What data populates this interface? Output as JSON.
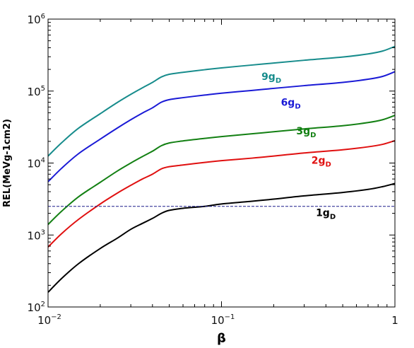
{
  "chart_data": {
    "type": "line",
    "title": "",
    "xlabel": "β",
    "ylabel": "REL(MeVg-1cm2)",
    "xscale": "log",
    "yscale": "log",
    "xlim": [
      0.01,
      1
    ],
    "ylim": [
      100,
      1000000
    ],
    "grid": false,
    "x_ticks": [
      {
        "base": "10",
        "exp": "−2",
        "value": 0.01
      },
      {
        "base": "10",
        "exp": "−1",
        "value": 0.1
      },
      {
        "base": "1",
        "exp": "",
        "value": 1
      }
    ],
    "y_ticks": [
      {
        "base": "10",
        "exp": "2",
        "value": 100
      },
      {
        "base": "10",
        "exp": "3",
        "value": 1000
      },
      {
        "base": "10",
        "exp": "4",
        "value": 10000
      },
      {
        "base": "10",
        "exp": "5",
        "value": 100000
      },
      {
        "base": "10",
        "exp": "6",
        "value": 1000000
      }
    ],
    "threshold": {
      "y": 2500,
      "color": "#1c1c8c",
      "style": "dashed"
    },
    "series": [
      {
        "name": "1gD",
        "label_main": "1g",
        "label_sub": "D",
        "color": "#000000",
        "label_pos": [
          0.35,
          2050
        ],
        "x": [
          0.01,
          0.012,
          0.015,
          0.02,
          0.025,
          0.03,
          0.035,
          0.04,
          0.045,
          0.05,
          0.06,
          0.08,
          0.1,
          0.15,
          0.2,
          0.3,
          0.5,
          0.7,
          0.85,
          1.0
        ],
        "y": [
          160,
          250,
          400,
          650,
          900,
          1200,
          1450,
          1700,
          2000,
          2200,
          2350,
          2500,
          2700,
          2950,
          3150,
          3500,
          3900,
          4300,
          4700,
          5200
        ]
      },
      {
        "name": "2gD",
        "label_main": "2g",
        "label_sub": "D",
        "color": "#e01010",
        "label_pos": [
          0.33,
          11000
        ],
        "x": [
          0.01,
          0.012,
          0.015,
          0.02,
          0.025,
          0.03,
          0.035,
          0.04,
          0.045,
          0.05,
          0.06,
          0.08,
          0.1,
          0.15,
          0.2,
          0.3,
          0.5,
          0.7,
          0.85,
          1.0
        ],
        "y": [
          680,
          1050,
          1650,
          2700,
          3800,
          4900,
          6000,
          7000,
          8300,
          8900,
          9400,
          10200,
          10800,
          11700,
          12500,
          13800,
          15300,
          16800,
          18200,
          20500
        ]
      },
      {
        "name": "3gD",
        "label_main": "3g",
        "label_sub": "D",
        "color": "#138013",
        "label_pos": [
          0.27,
          28000
        ],
        "x": [
          0.01,
          0.012,
          0.015,
          0.02,
          0.025,
          0.03,
          0.035,
          0.04,
          0.045,
          0.05,
          0.06,
          0.08,
          0.1,
          0.15,
          0.2,
          0.3,
          0.5,
          0.7,
          0.85,
          1.0
        ],
        "y": [
          1400,
          2150,
          3400,
          5400,
          7700,
          10000,
          12300,
          14600,
          17400,
          19000,
          20300,
          22000,
          23300,
          25500,
          27200,
          29800,
          33000,
          36500,
          40000,
          46000
        ]
      },
      {
        "name": "6gD",
        "label_main": "6g",
        "label_sub": "D",
        "color": "#1a1ad6",
        "label_pos": [
          0.22,
          70000
        ],
        "x": [
          0.01,
          0.012,
          0.015,
          0.02,
          0.025,
          0.03,
          0.035,
          0.04,
          0.045,
          0.05,
          0.06,
          0.08,
          0.1,
          0.15,
          0.2,
          0.3,
          0.5,
          0.7,
          0.85,
          1.0
        ],
        "y": [
          5500,
          8500,
          13500,
          21500,
          30500,
          40000,
          49500,
          58500,
          70000,
          76000,
          81000,
          88000,
          93500,
          102000,
          109000,
          119000,
          132000,
          146000,
          160000,
          186000
        ]
      },
      {
        "name": "9gD",
        "label_main": "9g",
        "label_sub": "D",
        "color": "#178c8c",
        "label_pos": [
          0.17,
          160000
        ],
        "x": [
          0.01,
          0.012,
          0.015,
          0.02,
          0.025,
          0.03,
          0.035,
          0.04,
          0.045,
          0.05,
          0.06,
          0.08,
          0.1,
          0.15,
          0.2,
          0.3,
          0.5,
          0.7,
          0.85,
          1.0
        ],
        "y": [
          12500,
          19200,
          30500,
          48500,
          69000,
          90000,
          111000,
          132000,
          157000,
          171000,
          182000,
          198000,
          210000,
          230000,
          245000,
          268000,
          297000,
          328000,
          360000,
          418000
        ]
      }
    ]
  }
}
